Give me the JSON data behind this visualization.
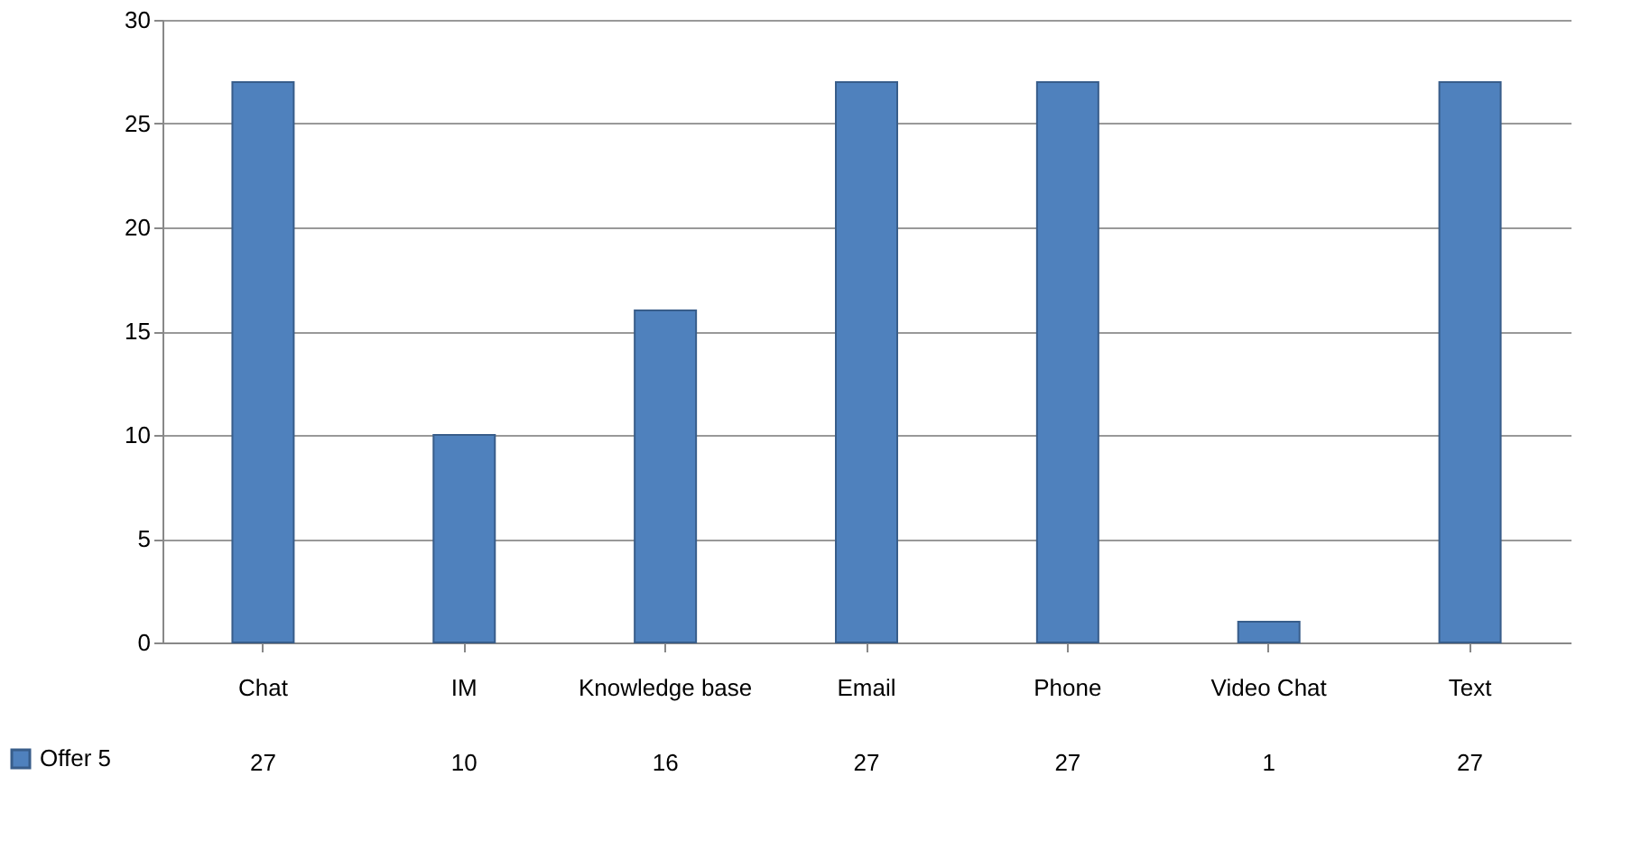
{
  "chart_data": {
    "type": "bar",
    "categories": [
      "Chat",
      "IM",
      "Knowledge base",
      "Email",
      "Phone",
      "Video Chat",
      "Text"
    ],
    "series": [
      {
        "name": "Offer 5",
        "color": "#4f81bd",
        "values": [
          27,
          10,
          16,
          27,
          27,
          1,
          27
        ]
      }
    ],
    "ylim": [
      0,
      30
    ],
    "yticks": [
      0,
      5,
      10,
      15,
      20,
      25,
      30
    ],
    "grid": "y",
    "legend": "bottom",
    "data_labels": true
  }
}
